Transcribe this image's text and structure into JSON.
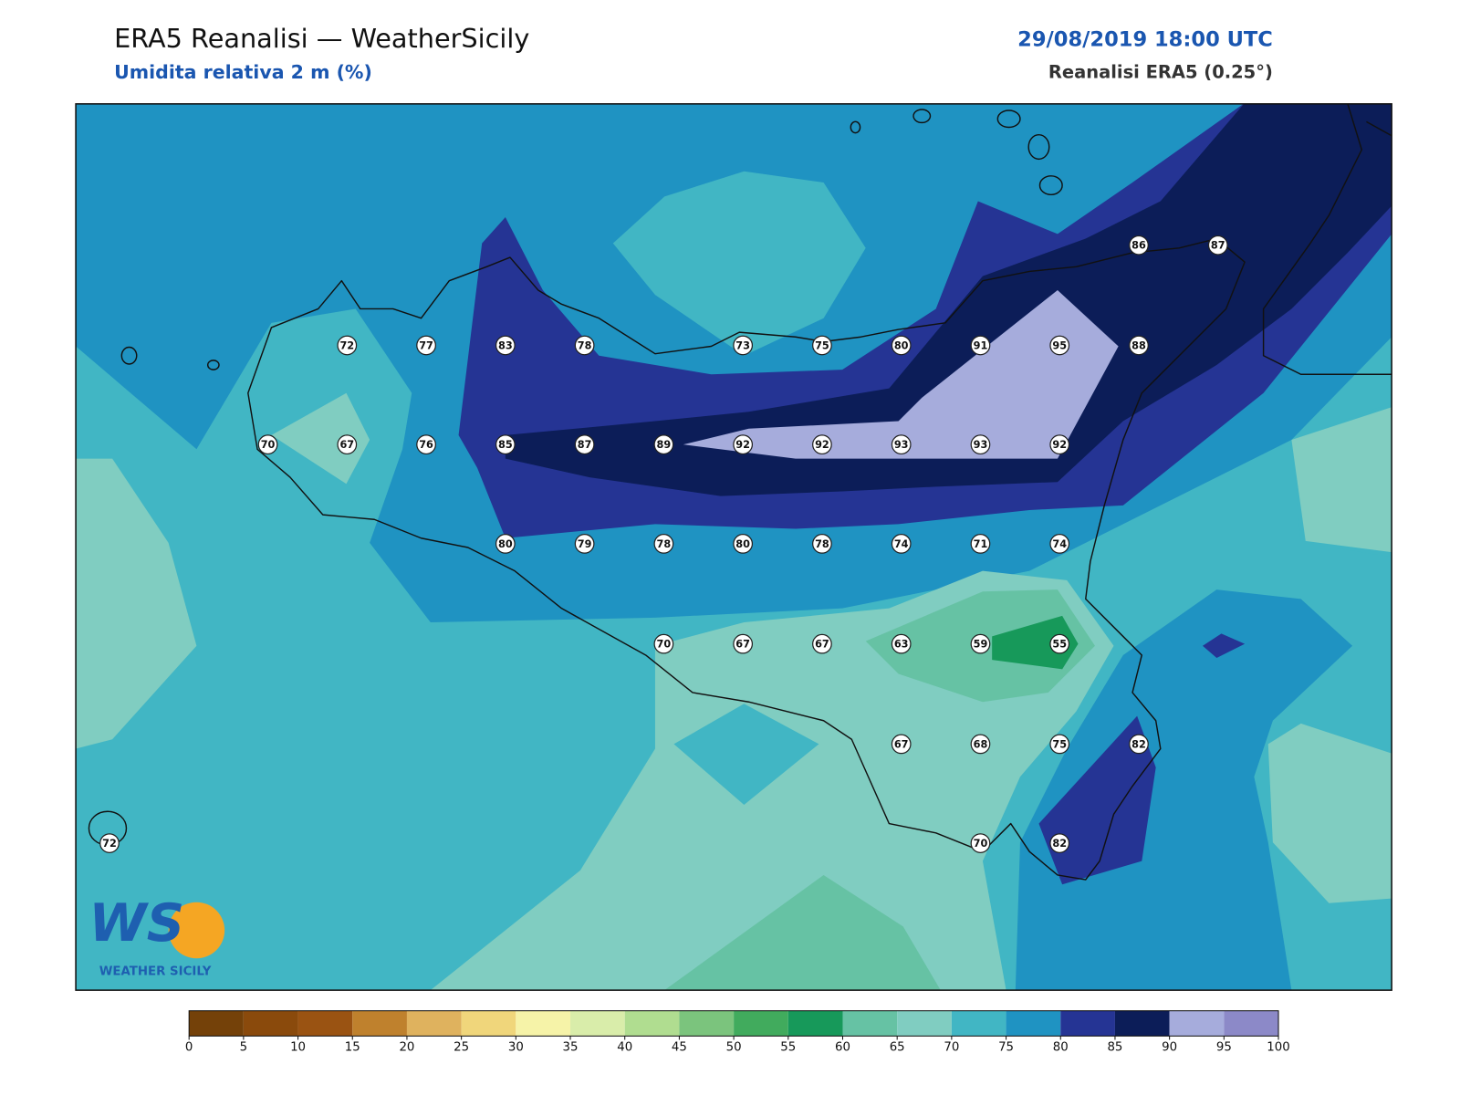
{
  "header": {
    "title": "ERA5 Reanalisi — WeatherSicily",
    "subtitle": "Umidita relativa 2 m (%)",
    "datetime": "29/08/2019 18:00 UTC",
    "source": "Reanalisi ERA5 (0.25°)"
  },
  "stations": [
    86,
    87,
    72,
    77,
    83,
    78,
    73,
    75,
    80,
    91,
    95,
    88,
    70,
    67,
    76,
    85,
    87,
    89,
    92,
    92,
    93,
    93,
    92,
    80,
    79,
    78,
    80,
    78,
    74,
    71,
    74,
    70,
    67,
    67,
    63,
    59,
    55,
    67,
    68,
    75,
    82,
    72,
    70,
    82
  ],
  "logo": {
    "mark": "WS",
    "name": "WEATHER SICILY"
  },
  "colorbar": {
    "ticks": [
      0,
      5,
      10,
      15,
      20,
      25,
      30,
      35,
      40,
      45,
      50,
      55,
      60,
      65,
      70,
      75,
      80,
      85,
      90,
      95,
      100
    ],
    "colors": [
      "#744109",
      "#8a4a0c",
      "#9a5312",
      "#bf812d",
      "#dfb25e",
      "#f0d67b",
      "#f6f3a8",
      "#d9edaa",
      "#b0dd90",
      "#7bc47d",
      "#41ab5d",
      "#17995a",
      "#66c2a4",
      "#80cdc1",
      "#41b6c4",
      "#1f93c2",
      "#253494",
      "#0c1d58",
      "#a6acdc",
      "#8c89c8"
    ]
  }
}
